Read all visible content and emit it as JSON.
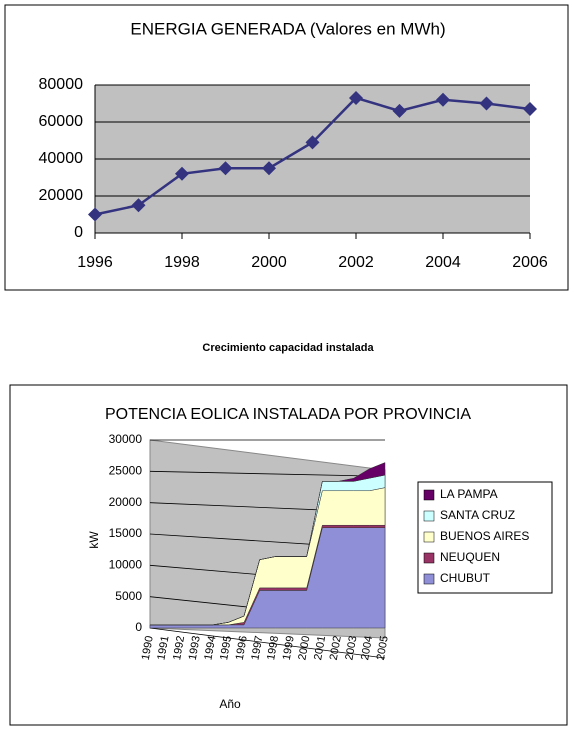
{
  "caption": "Crecimiento capacidad instalada",
  "chart_data": [
    {
      "type": "line",
      "title": "ENERGIA GENERADA (Valores en MWh)",
      "x": [
        1996,
        1997,
        1998,
        1999,
        2000,
        2001,
        2002,
        2003,
        2004,
        2005,
        2006
      ],
      "series": [
        {
          "name": "MWh",
          "color": "#333380",
          "values": [
            10000,
            15000,
            32000,
            35000,
            35000,
            49000,
            73000,
            66000,
            72000,
            70000,
            67000
          ]
        }
      ],
      "xlim": [
        1996,
        2006
      ],
      "xticks": [
        1996,
        1998,
        2000,
        2002,
        2004,
        2006
      ],
      "ylim": [
        0,
        80000
      ],
      "yticks": [
        0,
        20000,
        40000,
        60000,
        80000
      ],
      "grid": true
    },
    {
      "type": "stacked-area",
      "title": "POTENCIA EOLICA INSTALADA POR PROVINCIA",
      "ylabel": "kW",
      "xlabel": "Año",
      "categories": [
        "1990",
        "1991",
        "1992",
        "1993",
        "1994",
        "1995",
        "1996",
        "1997",
        "1998",
        "1999",
        "2000",
        "2001",
        "2002",
        "2003",
        "2004",
        "2005"
      ],
      "series": [
        {
          "name": "CHUBUT",
          "color": "#8f8fd8",
          "values": [
            500,
            500,
            500,
            500,
            500,
            500,
            500,
            6000,
            6000,
            6000,
            6000,
            16000,
            16000,
            16000,
            16000,
            16000
          ]
        },
        {
          "name": "NEUQUEN",
          "color": "#993366",
          "values": [
            0,
            0,
            0,
            0,
            0,
            0,
            400,
            400,
            400,
            400,
            400,
            400,
            400,
            400,
            400,
            400
          ]
        },
        {
          "name": "BUENOS AIRES",
          "color": "#ffffcc",
          "values": [
            0,
            0,
            0,
            0,
            0,
            400,
            1000,
            4500,
            5000,
            5000,
            5000,
            5500,
            5500,
            5500,
            5500,
            6000
          ]
        },
        {
          "name": "SANTA CRUZ",
          "color": "#ccffff",
          "values": [
            0,
            0,
            0,
            0,
            0,
            0,
            0,
            0,
            0,
            0,
            0,
            1500,
            1500,
            1500,
            2000,
            2000
          ]
        },
        {
          "name": "LA PAMPA",
          "color": "#660066",
          "values": [
            0,
            0,
            0,
            0,
            0,
            0,
            0,
            0,
            0,
            0,
            0,
            0,
            0,
            500,
            1500,
            2000
          ]
        }
      ],
      "ylim": [
        0,
        30000
      ],
      "yticks": [
        0,
        5000,
        10000,
        15000,
        20000,
        25000,
        30000
      ],
      "grid": true,
      "legend": "right"
    }
  ]
}
